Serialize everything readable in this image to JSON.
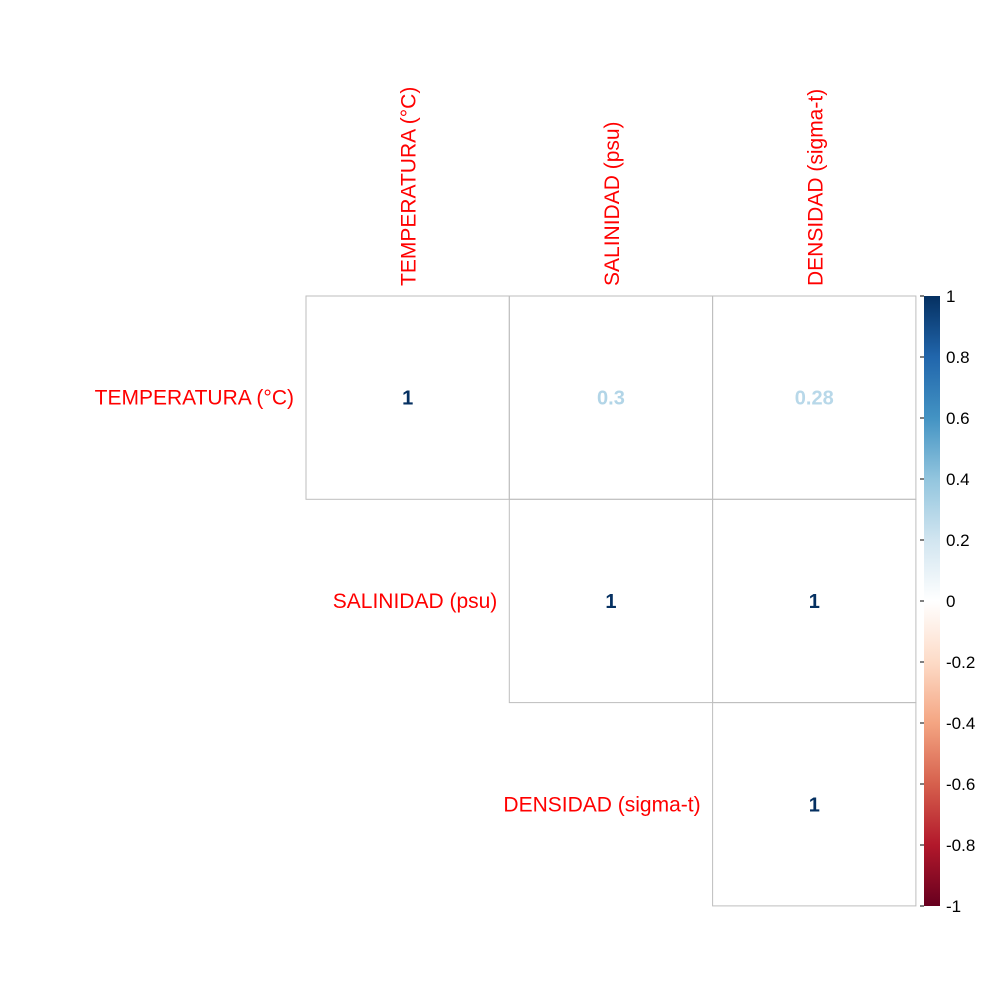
{
  "chart_data": {
    "type": "heatmap",
    "variables": [
      "TEMPERATURA (°C)",
      "SALINIDAD (psu)",
      "DENSIDAD (sigma-t)"
    ],
    "matrix": [
      [
        1,
        0.3,
        0.28
      ],
      [
        null,
        1,
        1
      ],
      [
        null,
        null,
        1
      ]
    ],
    "cell_labels": [
      [
        "1",
        "0.3",
        "0.28"
      ],
      [
        "",
        "1",
        "1"
      ],
      [
        "",
        "",
        "1"
      ]
    ],
    "triangle": "upper",
    "colorbar": {
      "range": [
        -1,
        1
      ],
      "ticks": [
        1,
        0.8,
        0.6,
        0.4,
        0.2,
        0,
        -0.2,
        -0.4,
        -0.6,
        -0.8,
        -1
      ],
      "tick_labels": [
        "1",
        "0.8",
        "0.6",
        "0.4",
        "0.2",
        "0",
        "-0.2",
        "-0.4",
        "-0.6",
        "-0.8",
        "-1"
      ],
      "placement": "right"
    },
    "colors": {
      "label": "#ff0000",
      "grid": "#bebebe",
      "scale": [
        "#67001f",
        "#b2182b",
        "#d6604d",
        "#f4a582",
        "#fddbc7",
        "#ffffff",
        "#d1e5f0",
        "#92c5de",
        "#4393c3",
        "#2166ac",
        "#053061"
      ]
    },
    "title": ""
  }
}
